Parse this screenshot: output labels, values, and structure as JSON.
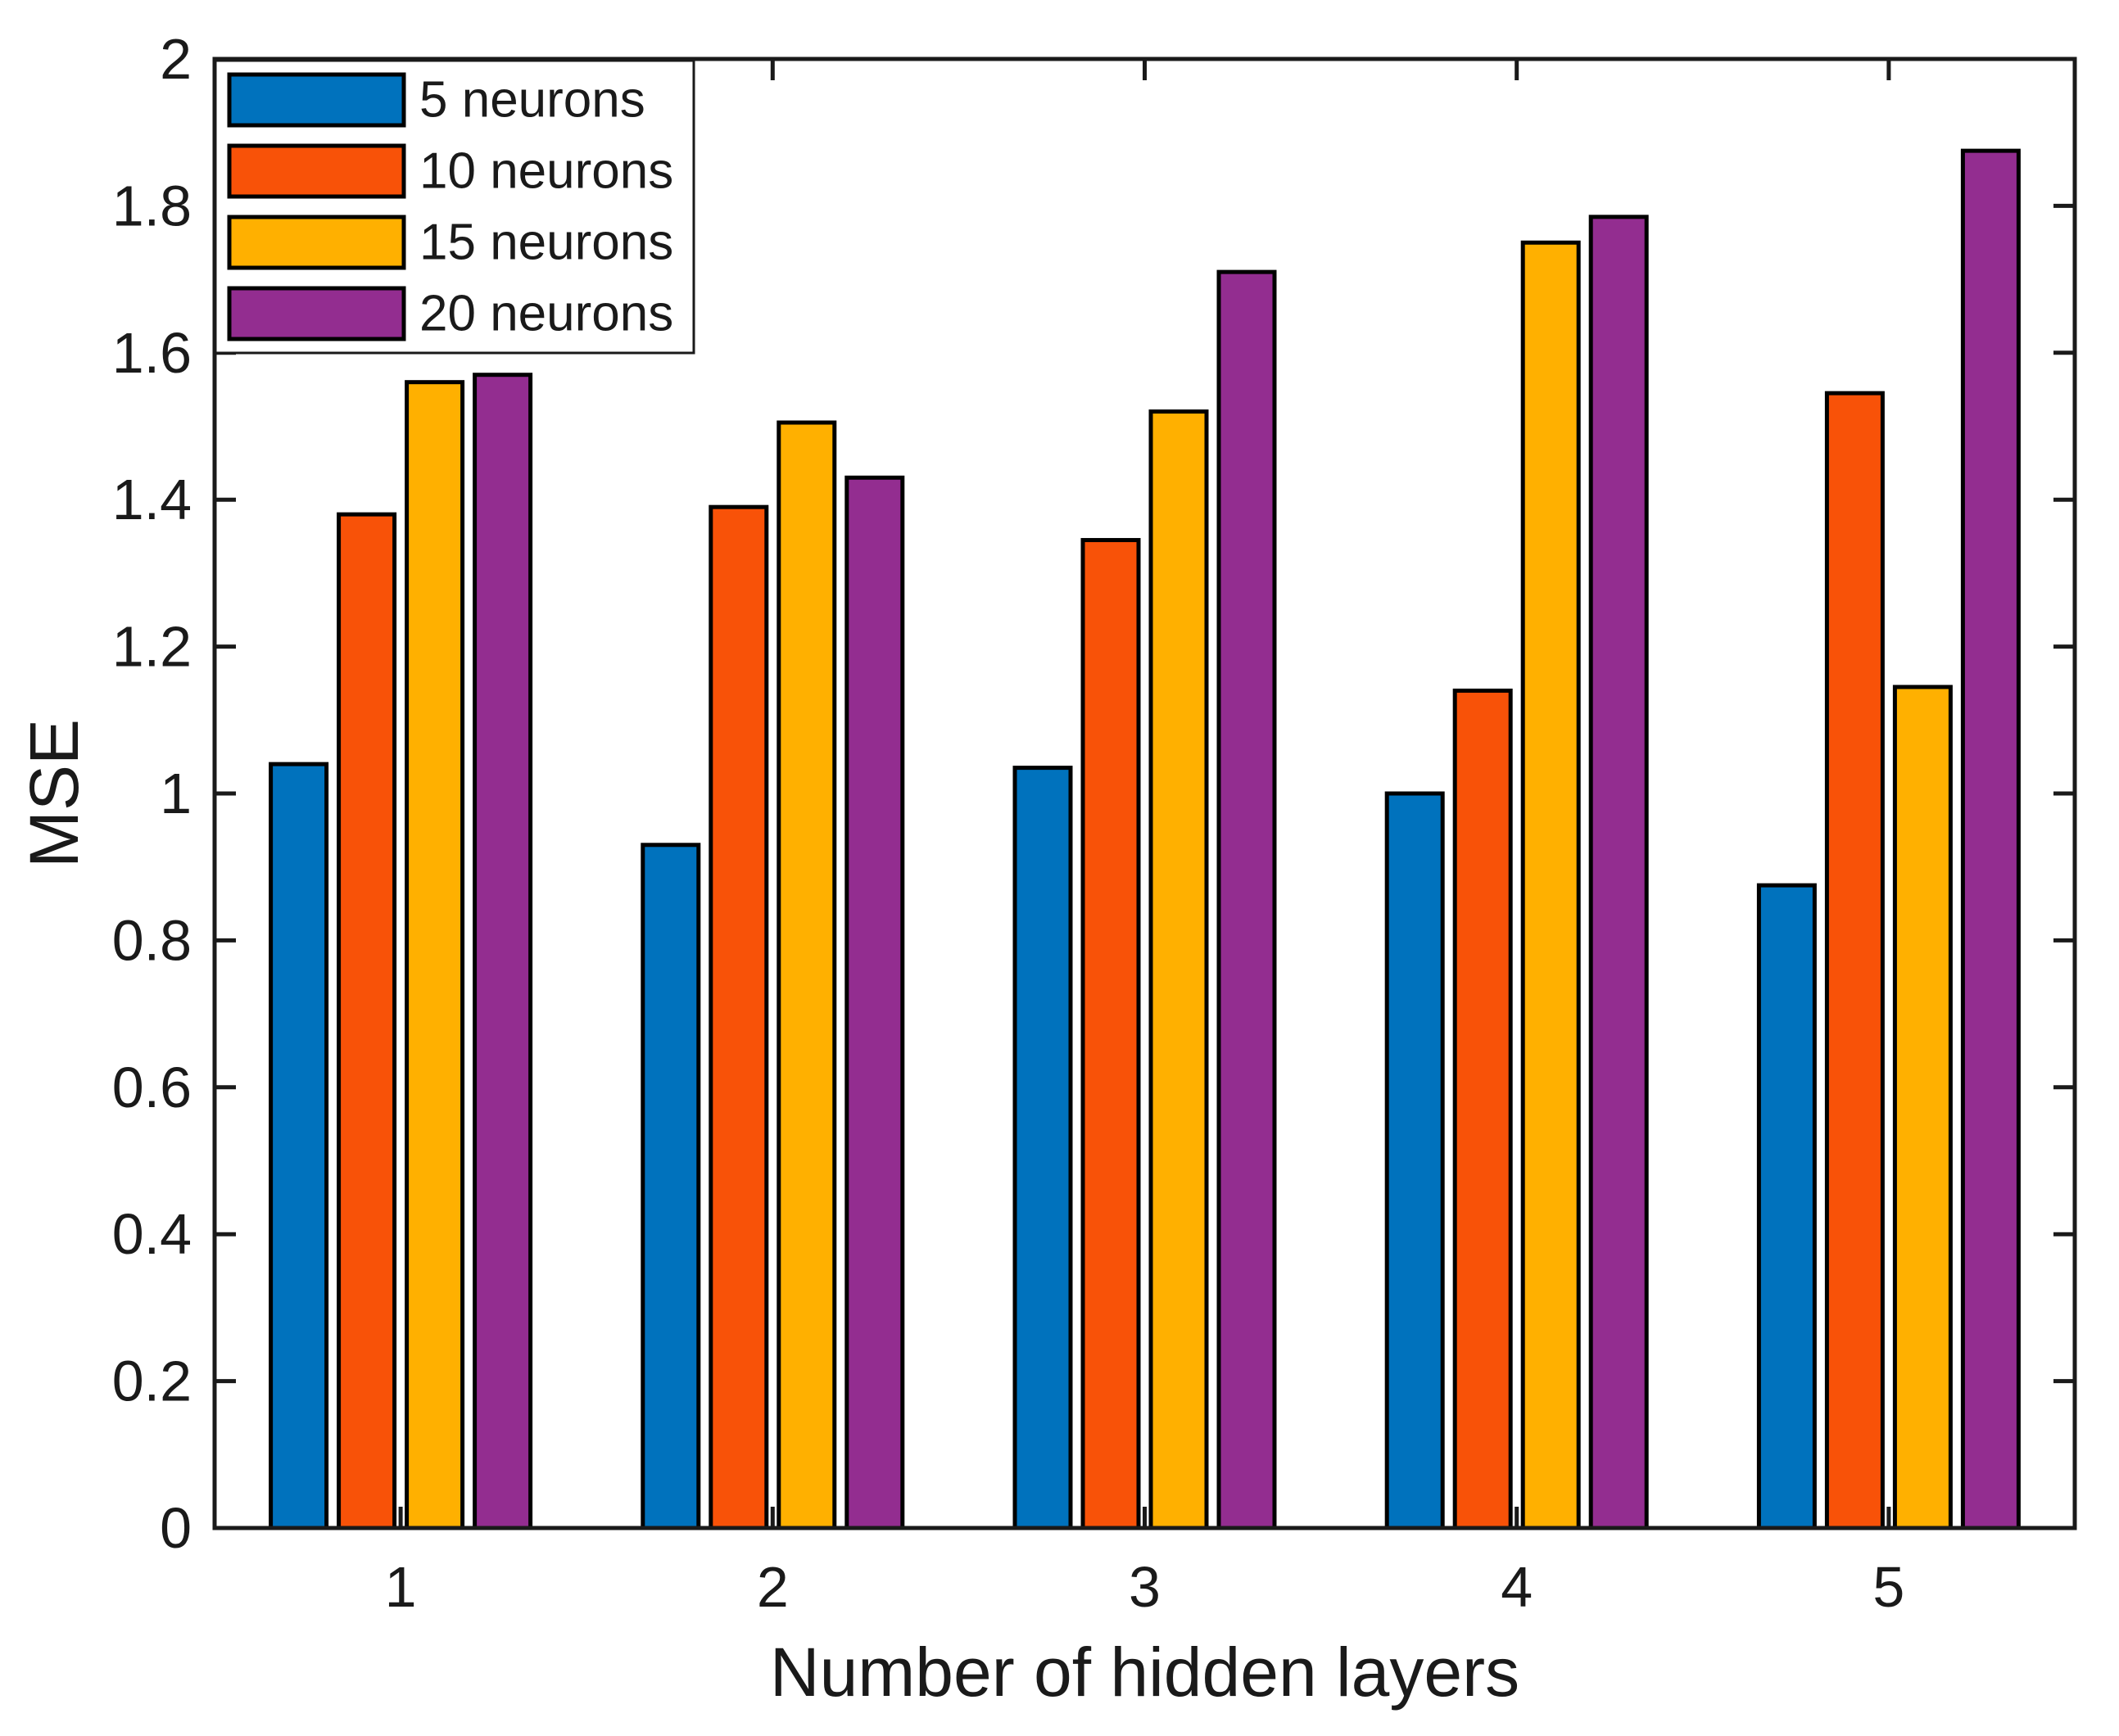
{
  "figure": {
    "background": "#ffffff",
    "axes_color": "#1a1a1a"
  },
  "chart_data": {
    "type": "bar",
    "title": "",
    "xlabel": "Number of hidden layers",
    "ylabel": "MSE",
    "categories": [
      "1",
      "2",
      "3",
      "4",
      "5"
    ],
    "series": [
      {
        "name": "5 neurons",
        "color": "#0072BD",
        "values": [
          1.04,
          0.93,
          1.035,
          1.0,
          0.875
        ]
      },
      {
        "name": "10 neurons",
        "color": "#F85208",
        "values": [
          1.38,
          1.39,
          1.345,
          1.14,
          1.545
        ]
      },
      {
        "name": "15 neurons",
        "color": "#FFB000",
        "values": [
          1.56,
          1.505,
          1.52,
          1.75,
          1.145
        ]
      },
      {
        "name": "20 neurons",
        "color": "#932D90",
        "values": [
          1.57,
          1.43,
          1.71,
          1.785,
          1.875
        ]
      }
    ],
    "ylim": [
      0,
      2
    ],
    "ytick_labels": [
      "0",
      "0.2",
      "0.4",
      "0.6",
      "0.8",
      "1",
      "1.2",
      "1.4",
      "1.6",
      "1.8",
      "2"
    ],
    "grid": false,
    "legend_position": "top-left",
    "bar_edge_color": "#000000"
  }
}
